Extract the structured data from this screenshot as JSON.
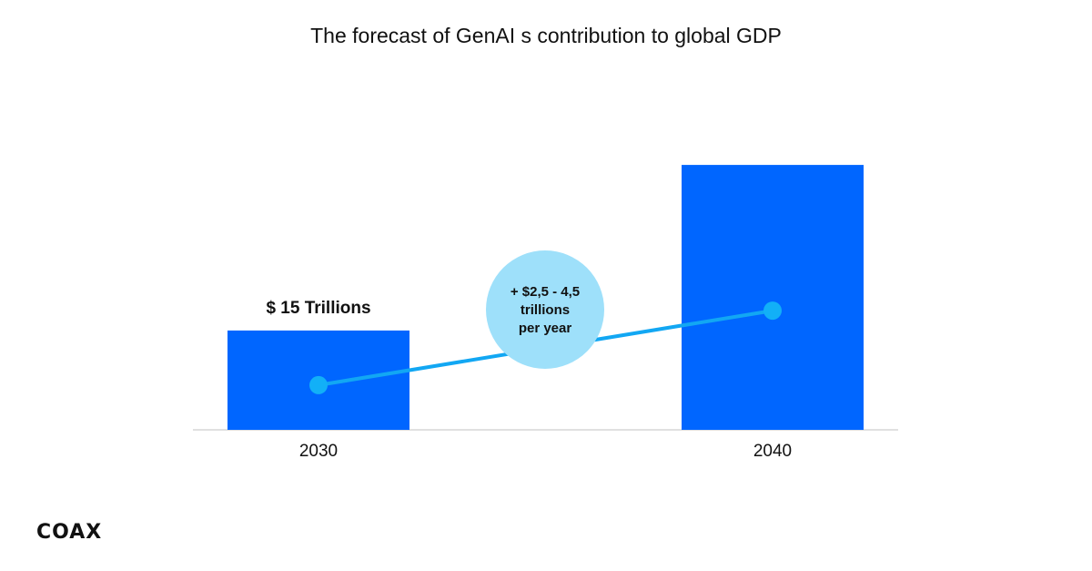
{
  "chart_data": {
    "type": "bar",
    "title": "The forecast of GenAI s contribution to global GDP",
    "categories": [
      "2030",
      "2040"
    ],
    "values": [
      15,
      40
    ],
    "data_labels": [
      "$ 15 Trillions",
      ""
    ],
    "ylim": [
      0,
      44
    ],
    "grid": false,
    "trend_line": {
      "from": "2030",
      "to": "2040"
    },
    "annotation": [
      "+ $2,5 - 4,5",
      "trillions",
      "per year"
    ],
    "colors": {
      "bar": "#0066ff",
      "line": "#12a7f3",
      "bubble": "#9ee0fa"
    }
  },
  "brand": {
    "logo_text": "COAX"
  }
}
